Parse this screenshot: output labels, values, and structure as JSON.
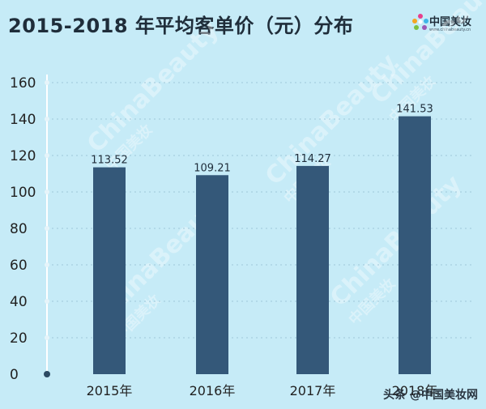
{
  "header": {
    "title": "2015-2018 年平均客单价（元）分布"
  },
  "logo": {
    "name": "中国美妆",
    "subtitle": "www.chinabeauty.cn"
  },
  "watermark": {
    "text": "头条 @中国美妆网"
  },
  "background_marks": [
    "ChinaBeauty",
    "中国美妆"
  ],
  "colors": {
    "background": "#c6ebf7",
    "bar": "#345879",
    "grid": "#9fc7d8",
    "text": "#222222",
    "axis_dot": "#6f90a8"
  },
  "chart_data": {
    "type": "bar",
    "categories": [
      "2015年",
      "2016年",
      "2017年",
      "2018年"
    ],
    "values": [
      113.52,
      109.21,
      114.27,
      141.53
    ],
    "value_labels": [
      "113.52",
      "109.21",
      "114.27",
      "141.53"
    ],
    "title": "2015-2018 年平均客单价（元）分布",
    "xlabel": "",
    "ylabel": "",
    "ylim": [
      0,
      160
    ],
    "yticks": [
      0,
      20,
      40,
      60,
      80,
      100,
      120,
      140,
      160
    ],
    "grid": true,
    "legend": "none"
  }
}
